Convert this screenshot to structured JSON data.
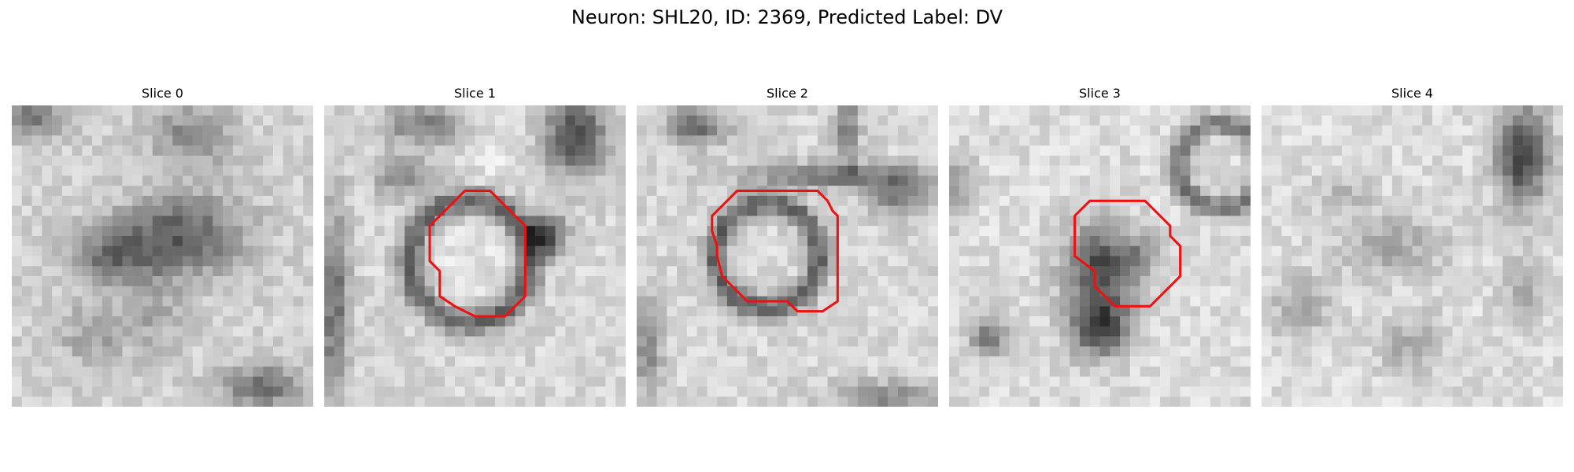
{
  "figure": {
    "title": "Neuron: SHL20, ID: 2369, Predicted Label: DV"
  },
  "colors": {
    "contour": "#ee1111",
    "background": "#ffffff"
  },
  "panels": [
    {
      "title": "Slice 0",
      "has_contour": false
    },
    {
      "title": "Slice 1",
      "has_contour": true
    },
    {
      "title": "Slice 2",
      "has_contour": true
    },
    {
      "title": "Slice 3",
      "has_contour": true
    },
    {
      "title": "Slice 4",
      "has_contour": false
    }
  ]
}
